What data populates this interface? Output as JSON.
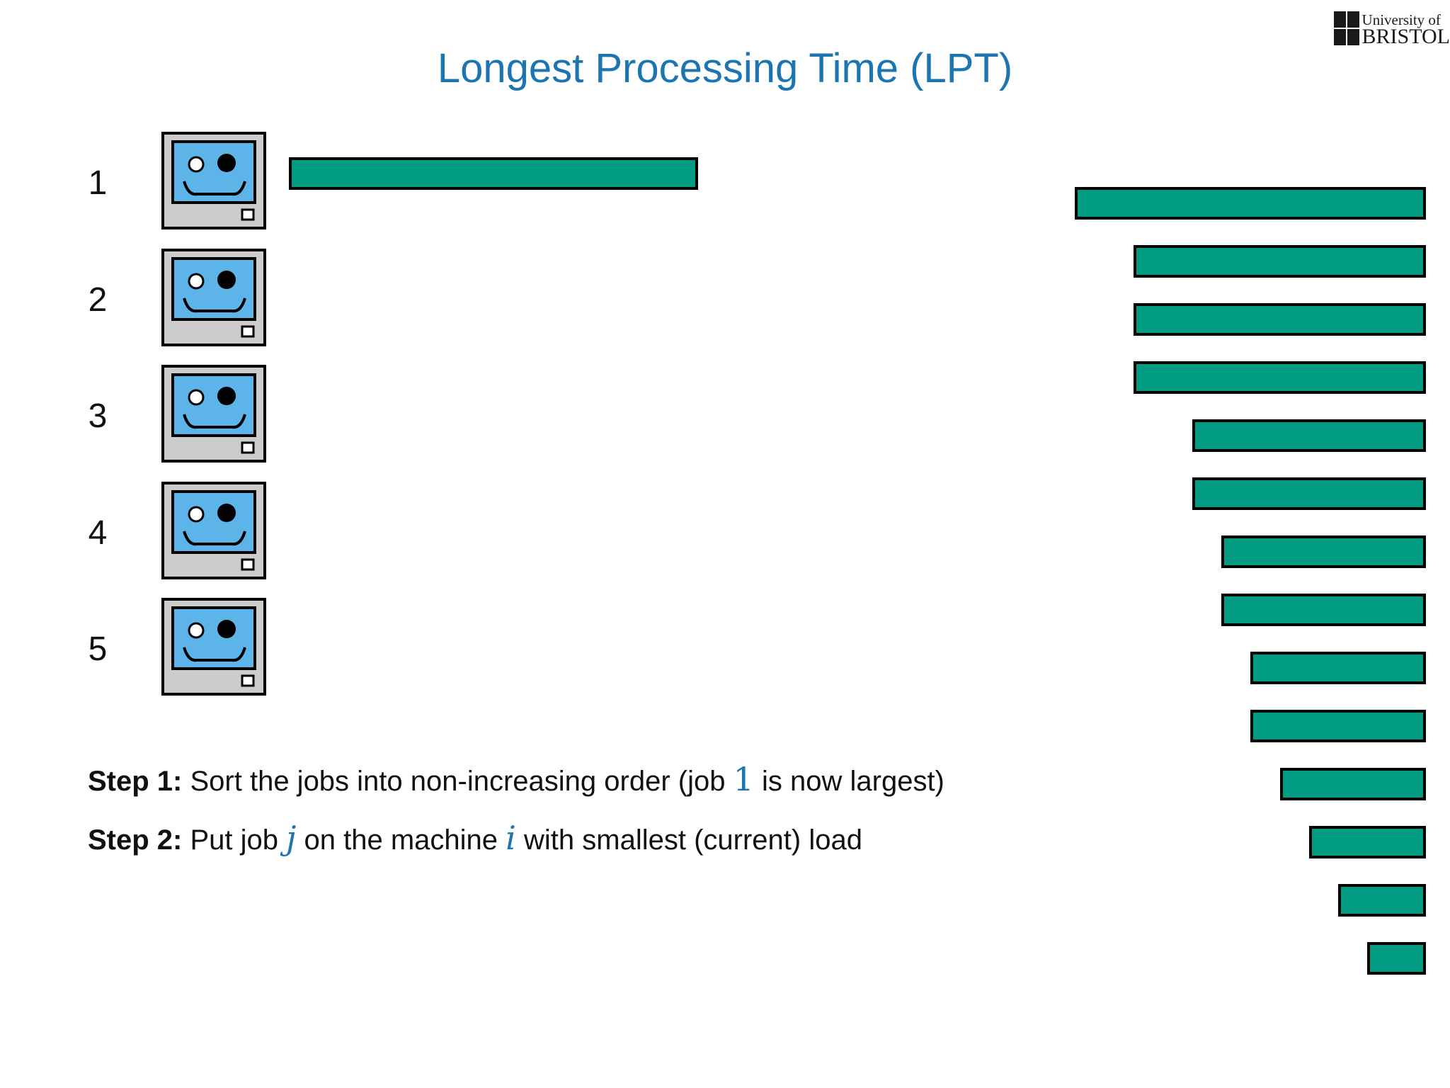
{
  "title": "Longest Processing Time (LPT)",
  "logo": {
    "line1": "University of",
    "line2": "BRISTOL",
    "icon": "university-crest-icon"
  },
  "machines": [
    {
      "label": "1",
      "icon": "monitor-face-icon"
    },
    {
      "label": "2",
      "icon": "monitor-face-icon"
    },
    {
      "label": "3",
      "icon": "monitor-face-icon"
    },
    {
      "label": "4",
      "icon": "monitor-face-icon"
    },
    {
      "label": "5",
      "icon": "monitor-face-icon"
    }
  ],
  "colors": {
    "title": "#1b75b1",
    "job_fill": "#009b80",
    "job_border": "#000000",
    "screen": "#5cb4e8",
    "monitor_case": "#cccccc"
  },
  "assigned_jobs": [
    {
      "machine": "1",
      "job": "1",
      "length": 14
    }
  ],
  "job_queue_lengths": [
    12,
    10,
    10,
    10,
    8,
    8,
    7,
    7,
    6,
    6,
    5,
    4,
    3,
    2
  ],
  "steps": [
    {
      "label": "Step 1:",
      "text_before": "Sort the jobs into non-increasing order (job",
      "math1": "1",
      "text_after": "is now largest)"
    },
    {
      "label": "Step 2:",
      "text_before": "Put job",
      "math1": "j",
      "text_middle": "on the machine",
      "math2": "i",
      "text_after": "with smallest (current) load"
    }
  ]
}
